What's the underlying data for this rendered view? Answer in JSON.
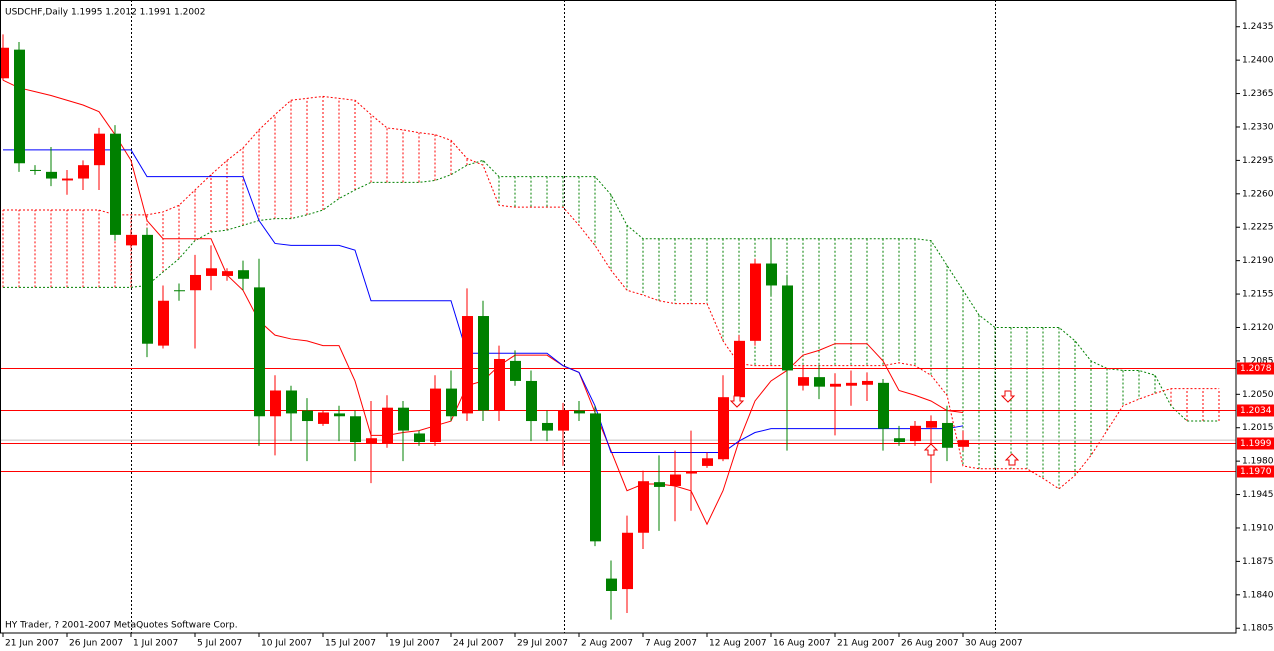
{
  "chart_data": {
    "type": "candlestick",
    "title": "USDCHF,Daily  1.1995 1.2012 1.1991 1.2002",
    "footer": "HY Trader, ? 2001-2007 MetaQuotes Software Corp.",
    "categories": [
      "21 Jun 2007",
      null,
      null,
      null,
      "26 Jun 2007",
      null,
      null,
      null,
      "1 Jul 2007",
      null,
      null,
      null,
      "5 Jul 2007",
      null,
      null,
      null,
      "10 Jul 2007",
      null,
      null,
      null,
      "15 Jul 2007",
      null,
      null,
      null,
      "19 Jul 2007",
      null,
      null,
      null,
      "24 Jul 2007",
      null,
      null,
      null,
      "29 Jul 2007",
      null,
      null,
      null,
      "2 Aug 2007",
      null,
      null,
      null,
      "7 Aug 2007",
      null,
      null,
      null,
      "12 Aug 2007",
      null,
      null,
      null,
      "16 Aug 2007",
      null,
      null,
      null,
      "21 Aug 2007",
      null,
      null,
      null,
      "26 Aug 2007",
      null,
      null,
      null,
      "30 Aug 2007",
      null,
      null,
      null,
      null,
      null,
      null,
      null,
      null,
      null,
      null,
      null,
      null,
      null,
      null,
      null,
      null
    ],
    "open": [
      1.2381,
      1.2411,
      1.2285,
      1.2283,
      1.2274,
      1.2276,
      1.229,
      1.2323,
      1.2206,
      1.2217,
      1.2101,
      1.2159,
      1.2159,
      1.2174,
      1.2174,
      1.218,
      1.2162,
      1.2027,
      1.2054,
      1.2033,
      1.2019,
      1.203,
      1.2027,
      1.1999,
      1.1999,
      1.2036,
      1.2009,
      1.2,
      1.2056,
      1.203,
      1.2132,
      1.2033,
      1.2085,
      1.2064,
      1.202,
      1.2012,
      1.2033,
      1.203,
      1.1857,
      1.1846,
      1.1905,
      1.1958,
      1.1954,
      1.1967,
      1.1975,
      1.1982,
      1.2047,
      1.2106,
      1.2187,
      1.2164,
      1.2059,
      1.2068,
      1.2058,
      1.2059,
      1.206,
      1.2062,
      1.2004,
      1.2001,
      1.2015,
      1.202,
      1.1995,
      null,
      null,
      null,
      null,
      null,
      null,
      null,
      null,
      null,
      null,
      null,
      null,
      null,
      null,
      null,
      null
    ],
    "high": [
      1.2427,
      1.2419,
      1.229,
      1.2309,
      1.2285,
      1.2295,
      1.2329,
      1.2332,
      1.2222,
      1.2224,
      1.2164,
      1.2166,
      1.2196,
      1.2206,
      1.2182,
      1.219,
      1.2192,
      1.207,
      1.2059,
      1.2046,
      1.2033,
      1.2038,
      1.2033,
      1.2043,
      1.2049,
      1.2043,
      1.2012,
      1.207,
      1.2075,
      1.2161,
      1.2148,
      1.2101,
      1.2096,
      1.2075,
      1.2033,
      1.2041,
      1.2043,
      1.2038,
      1.1876,
      1.1923,
      1.197,
      1.1986,
      1.1991,
      1.2012,
      1.1989,
      1.207,
      1.2112,
      1.2192,
      1.2214,
      1.2175,
      1.208,
      1.208,
      1.2072,
      1.2075,
      1.2073,
      1.2066,
      1.2017,
      1.2022,
      1.2028,
      1.2038,
      1.2012,
      null,
      null,
      null,
      null,
      null,
      null,
      null,
      null,
      null,
      null,
      null,
      null,
      null,
      null,
      null,
      null
    ],
    "low": [
      1.2379,
      1.2283,
      1.228,
      1.2268,
      1.2259,
      1.2264,
      1.2264,
      1.2211,
      1.2203,
      1.2089,
      1.2098,
      1.2148,
      1.2098,
      1.2159,
      1.2169,
      1.2159,
      1.1996,
      1.1986,
      1.2001,
      1.198,
      1.2017,
      1.2001,
      1.198,
      1.1957,
      1.1994,
      1.198,
      1.1996,
      1.1996,
      1.2022,
      1.2022,
      1.2022,
      1.2022,
      1.2059,
      1.2001,
      1.2001,
      1.1975,
      1.2022,
      1.1891,
      1.1814,
      1.1821,
      1.1888,
      1.1907,
      1.1917,
      1.1928,
      1.1973,
      1.198,
      1.2038,
      1.2101,
      1.2154,
      1.1991,
      1.2054,
      1.2045,
      1.2007,
      1.2038,
      1.2043,
      1.1991,
      1.1996,
      1.1996,
      1.1957,
      1.198,
      1.1991,
      null,
      null,
      null,
      null,
      null,
      null,
      null,
      null,
      null,
      null,
      null,
      null,
      null,
      null,
      null,
      null
    ],
    "close": [
      1.2413,
      1.2292,
      1.2285,
      1.2276,
      1.2276,
      1.229,
      1.2323,
      1.2217,
      1.2217,
      1.2103,
      1.2148,
      1.2159,
      1.2175,
      1.2182,
      1.2179,
      1.2171,
      1.2027,
      1.2054,
      1.203,
      1.2022,
      1.2031,
      1.2027,
      1.2,
      1.2004,
      1.2036,
      1.2012,
      1.2,
      1.2056,
      1.2027,
      1.2132,
      1.2033,
      1.2087,
      1.2064,
      1.2022,
      1.2012,
      1.2033,
      1.203,
      1.1896,
      1.1844,
      1.1905,
      1.1959,
      1.1953,
      1.1966,
      1.1969,
      1.1983,
      1.2047,
      1.2106,
      1.2187,
      1.2164,
      1.2075,
      1.2068,
      1.2058,
      1.2061,
      1.2062,
      1.2064,
      1.2014,
      1.2,
      1.2017,
      1.2022,
      1.1994,
      1.2002,
      null,
      null,
      null,
      null,
      null,
      null,
      null,
      null,
      null,
      null,
      null,
      null,
      null,
      null,
      null,
      null
    ],
    "up_color": "#ff0000",
    "down_color": "#008000",
    "lines": [
      {
        "color": "#ff0000",
        "values": [
          1.2379,
          1.2371,
          1.2367,
          1.2363,
          1.2358,
          1.2353,
          1.2346,
          1.2322,
          1.2295,
          1.2232,
          1.2213,
          1.2213,
          1.2213,
          1.2213,
          1.2175,
          1.2159,
          1.2127,
          1.2112,
          1.2108,
          1.2106,
          1.2101,
          1.2101,
          1.2064,
          1.2007,
          1.2007,
          1.201,
          1.2012,
          1.2017,
          1.2022,
          1.2059,
          1.2064,
          1.208,
          1.2091,
          1.2091,
          1.2091,
          1.208,
          1.2073,
          1.2031,
          1.1991,
          1.1949,
          1.1956,
          1.1956,
          1.1954,
          1.1949,
          1.1914,
          1.1949,
          1.2001,
          1.2043,
          1.2064,
          1.2075,
          1.2091,
          1.2096,
          1.2103,
          1.2103,
          1.2103,
          1.2085,
          1.2054,
          1.2049,
          1.2043,
          1.2033,
          1.2031,
          null,
          null,
          null,
          null,
          null,
          null,
          null,
          null,
          null,
          null,
          null,
          null,
          null,
          null,
          null,
          null
        ]
      },
      {
        "color": "#0000ff",
        "values": [
          1.2306,
          1.2306,
          1.2306,
          1.2306,
          1.2306,
          1.2306,
          1.2306,
          1.2306,
          1.2306,
          1.2278,
          1.2278,
          1.2278,
          1.2278,
          1.2278,
          1.2278,
          1.2278,
          1.2232,
          1.2208,
          1.2206,
          1.2206,
          1.2206,
          1.2206,
          1.2201,
          1.2148,
          1.2148,
          1.2148,
          1.2148,
          1.2148,
          1.2148,
          1.2093,
          1.2093,
          1.2093,
          1.2093,
          1.2093,
          1.2093,
          1.208,
          1.2073,
          1.2038,
          1.1989,
          1.1989,
          1.1989,
          1.1989,
          1.1989,
          1.1989,
          1.1989,
          1.1989,
          1.2001,
          1.201,
          1.2014,
          1.2014,
          1.2014,
          1.2014,
          1.2014,
          1.2014,
          1.2014,
          1.2014,
          1.2014,
          1.2014,
          1.2014,
          1.2014,
          1.2017,
          null,
          null,
          null,
          null,
          null,
          null,
          null,
          null,
          null,
          null,
          null,
          null,
          null,
          null,
          null,
          null
        ]
      }
    ],
    "cloud": {
      "a": {
        "color": "#008000",
        "values": [
          1.2162,
          1.2162,
          1.2162,
          1.2162,
          1.2162,
          1.2162,
          1.2162,
          1.2162,
          1.2162,
          1.2164,
          1.2178,
          1.2192,
          1.2211,
          1.222,
          1.2222,
          1.2227,
          1.2232,
          1.2234,
          1.2234,
          1.2238,
          1.2243,
          1.2255,
          1.2264,
          1.2272,
          1.2272,
          1.2272,
          1.2272,
          1.2274,
          1.228,
          1.229,
          1.2295,
          1.2278,
          1.2278,
          1.2278,
          1.2278,
          1.2278,
          1.2278,
          1.2278,
          1.2259,
          1.2227,
          1.2213,
          1.2213,
          1.2213,
          1.2213,
          1.2213,
          1.2213,
          1.2213,
          1.2213,
          1.2213,
          1.2213,
          1.2213,
          1.2213,
          1.2213,
          1.2213,
          1.2213,
          1.2213,
          1.2213,
          1.2213,
          1.2211,
          1.2185,
          1.2159,
          1.2133,
          1.212,
          1.212,
          1.212,
          1.212,
          1.212,
          1.2106,
          1.2085,
          1.2077,
          1.2075,
          1.2075,
          1.207,
          1.2038,
          1.2022,
          1.2022,
          1.2022
        ]
      },
      "b": {
        "color": "#ff0000",
        "values": [
          1.2243,
          1.2243,
          1.2243,
          1.2243,
          1.2243,
          1.2243,
          1.2243,
          1.2238,
          1.2238,
          1.2238,
          1.2241,
          1.2248,
          1.2264,
          1.228,
          1.2295,
          1.2308,
          1.2327,
          1.2343,
          1.2358,
          1.236,
          1.2362,
          1.236,
          1.2358,
          1.2343,
          1.2329,
          1.2327,
          1.2324,
          1.2322,
          1.2316,
          1.2297,
          1.229,
          1.2248,
          1.2246,
          1.2246,
          1.2246,
          1.2246,
          1.2227,
          1.2206,
          1.218,
          1.2159,
          1.2154,
          1.2148,
          1.2145,
          1.2145,
          1.2145,
          1.2106,
          1.2082,
          1.208,
          1.208,
          1.208,
          1.208,
          1.208,
          1.208,
          1.208,
          1.208,
          1.208,
          1.2083,
          1.208,
          1.207,
          1.2049,
          1.1975,
          1.1972,
          1.1972,
          1.1972,
          1.1972,
          1.1962,
          1.1951,
          1.1965,
          1.1986,
          1.2012,
          1.2038,
          1.2045,
          1.2051,
          1.2056,
          1.2056,
          1.2056,
          1.2056
        ]
      }
    },
    "levels": [
      1.2078,
      1.2034,
      1.1999,
      {
        "value": 1.197,
        "label": "1.1970"
      }
    ],
    "level_color": "#ff0000",
    "ylim": [
      1.18,
      1.2463
    ],
    "yticks": [
      1.2435,
      {
        "value": 1.24,
        "label": "1.2400"
      },
      1.2365,
      {
        "value": 1.233,
        "label": "1.2330"
      },
      1.2295,
      {
        "value": 1.226,
        "label": "1.2260"
      },
      1.2225,
      {
        "value": 1.219,
        "label": "1.2190"
      },
      1.2155,
      {
        "value": 1.212,
        "label": "1.2120"
      },
      1.2085,
      {
        "value": 1.205,
        "label": "1.2050"
      },
      1.2015,
      {
        "value": 1.198,
        "label": "1.1980"
      },
      1.1945,
      {
        "value": 1.191,
        "label": "1.1910"
      },
      1.1875,
      {
        "value": 1.184,
        "label": "1.1840"
      },
      1.1805
    ]
  }
}
